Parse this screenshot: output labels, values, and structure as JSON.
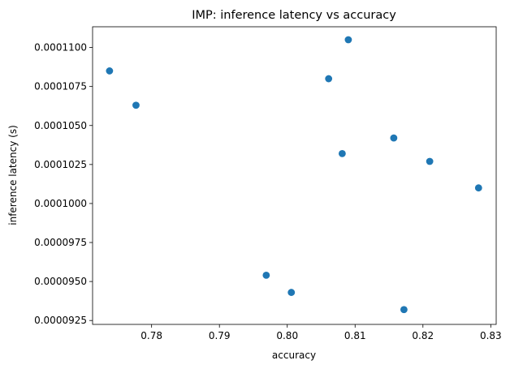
{
  "chart_data": {
    "type": "scatter",
    "title": "IMP: inference latency vs accuracy",
    "xlabel": "accuracy",
    "ylabel": "inference latency (s)",
    "xlim": [
      0.7713,
      0.8308
    ],
    "ylim": [
      9.225e-05,
      0.00011133
    ],
    "x_ticks": [
      0.78,
      0.79,
      0.8,
      0.81,
      0.82,
      0.83
    ],
    "x_tick_labels": [
      "0.78",
      "0.79",
      "0.80",
      "0.81",
      "0.82",
      "0.83"
    ],
    "y_ticks": [
      9.25e-05,
      9.5e-05,
      9.75e-05,
      0.0001,
      0.0001025,
      0.000105,
      0.0001075,
      0.00011
    ],
    "y_tick_labels": [
      "0.0000925",
      "0.0000950",
      "0.0000975",
      "0.0001000",
      "0.0001025",
      "0.0001050",
      "0.0001075",
      "0.0001100"
    ],
    "grid": false,
    "marker_color": "#1f77b4",
    "points": [
      {
        "x": 0.7738,
        "y": 0.0001085
      },
      {
        "x": 0.7777,
        "y": 0.0001063
      },
      {
        "x": 0.7969,
        "y": 9.54e-05
      },
      {
        "x": 0.8006,
        "y": 9.43e-05
      },
      {
        "x": 0.8061,
        "y": 0.000108
      },
      {
        "x": 0.8081,
        "y": 0.0001032
      },
      {
        "x": 0.809,
        "y": 0.0001105
      },
      {
        "x": 0.8157,
        "y": 0.0001042
      },
      {
        "x": 0.8172,
        "y": 9.32e-05
      },
      {
        "x": 0.821,
        "y": 0.0001027
      },
      {
        "x": 0.8282,
        "y": 0.000101
      }
    ]
  }
}
